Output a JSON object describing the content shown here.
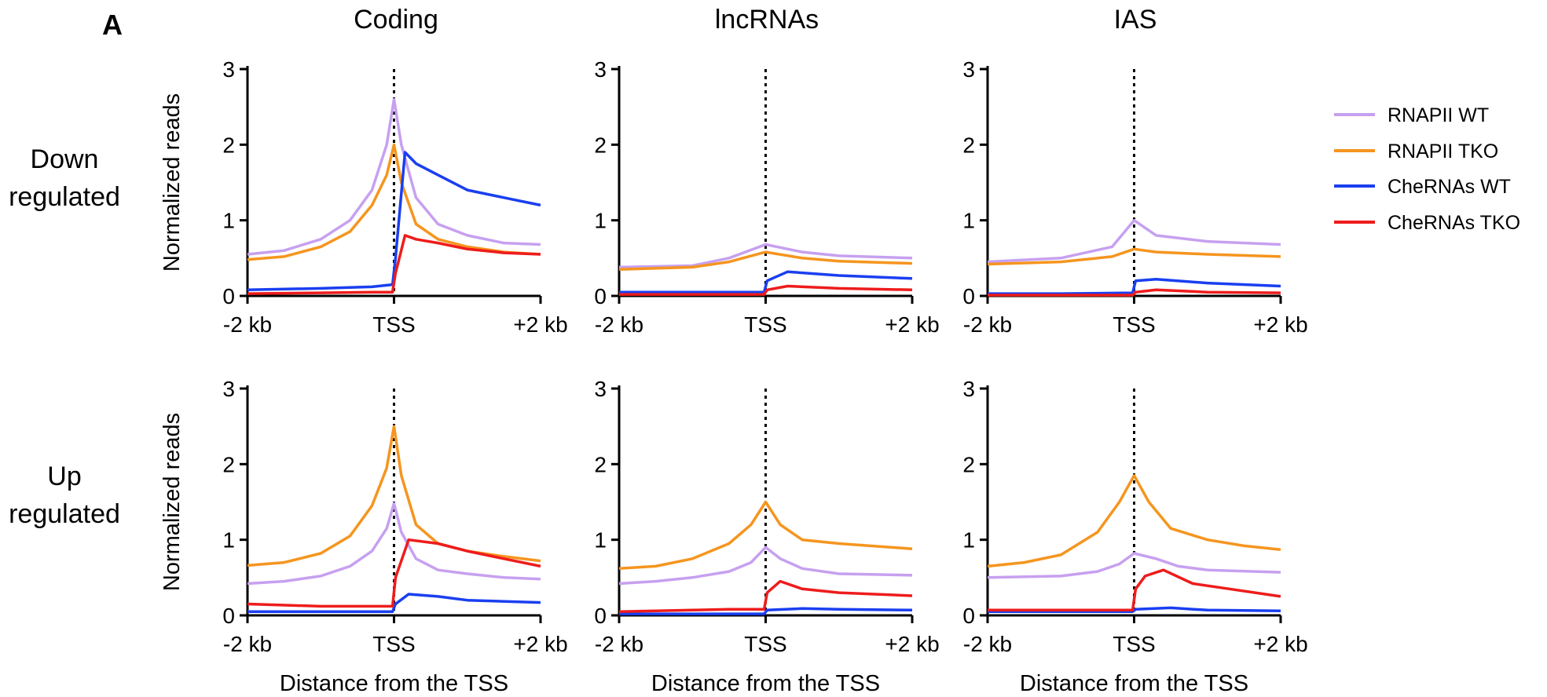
{
  "panel_letter": "A",
  "column_titles": [
    "Coding",
    "lncRNAs",
    "IAS"
  ],
  "row_labels": [
    {
      "line1": "Down",
      "line2": "regulated"
    },
    {
      "line1": "Up",
      "line2": "regulated"
    }
  ],
  "legend": [
    {
      "label": "RNAPII WT",
      "color": "#c7a0f0"
    },
    {
      "label": "RNAPII TKO",
      "color": "#f5951f"
    },
    {
      "label": "CheRNAs WT",
      "color": "#1a3ff0"
    },
    {
      "label": "CheRNAs TKO",
      "color": "#ee1c1c"
    }
  ],
  "chart_data": [
    {
      "type": "line",
      "row": 0,
      "col": 0,
      "title": "Coding",
      "row_label": "Down regulated",
      "ylabel": "Normalized reads",
      "xlabel": "",
      "ylim": [
        0,
        3
      ],
      "yticks": [
        0,
        1,
        2,
        3
      ],
      "xticks": [
        "-2 kb",
        "TSS",
        "+2 kb"
      ],
      "x_range_kb": [
        -2,
        2
      ],
      "tss_line": "dotted",
      "series": [
        {
          "name": "RNAPII WT",
          "x": [
            -2,
            -1.5,
            -1,
            -0.6,
            -0.3,
            -0.1,
            0,
            0.1,
            0.3,
            0.6,
            1,
            1.5,
            2
          ],
          "values": [
            0.55,
            0.6,
            0.75,
            1.0,
            1.4,
            2.0,
            2.6,
            2.0,
            1.3,
            0.95,
            0.8,
            0.7,
            0.68
          ]
        },
        {
          "name": "RNAPII TKO",
          "x": [
            -2,
            -1.5,
            -1,
            -0.6,
            -0.3,
            -0.1,
            0,
            0.1,
            0.3,
            0.6,
            1,
            1.5,
            2
          ],
          "values": [
            0.48,
            0.52,
            0.65,
            0.85,
            1.2,
            1.6,
            2.0,
            1.5,
            0.95,
            0.75,
            0.65,
            0.58,
            0.55
          ]
        },
        {
          "name": "CheRNAs WT",
          "x": [
            -2,
            -1,
            -0.3,
            -0.02,
            0.02,
            0.15,
            0.3,
            0.6,
            1,
            1.5,
            2
          ],
          "values": [
            0.08,
            0.1,
            0.12,
            0.15,
            0.5,
            1.9,
            1.75,
            1.6,
            1.4,
            1.3,
            1.2
          ]
        },
        {
          "name": "CheRNAs TKO",
          "x": [
            -2,
            -1,
            -0.3,
            -0.02,
            0.02,
            0.15,
            0.3,
            0.6,
            1,
            1.5,
            2
          ],
          "values": [
            0.03,
            0.04,
            0.05,
            0.05,
            0.3,
            0.8,
            0.75,
            0.7,
            0.62,
            0.57,
            0.55
          ]
        }
      ]
    },
    {
      "type": "line",
      "row": 0,
      "col": 1,
      "title": "lncRNAs",
      "row_label": "Down regulated",
      "ylabel": "",
      "xlabel": "",
      "ylim": [
        0,
        3
      ],
      "yticks": [
        0,
        1,
        2,
        3
      ],
      "xticks": [
        "-2 kb",
        "TSS",
        "+2 kb"
      ],
      "x_range_kb": [
        -2,
        2
      ],
      "tss_line": "dotted",
      "series": [
        {
          "name": "RNAPII WT",
          "x": [
            -2,
            -1,
            -0.5,
            0,
            0.5,
            1,
            2
          ],
          "values": [
            0.38,
            0.4,
            0.5,
            0.68,
            0.58,
            0.53,
            0.5
          ]
        },
        {
          "name": "RNAPII TKO",
          "x": [
            -2,
            -1,
            -0.5,
            0,
            0.5,
            1,
            2
          ],
          "values": [
            0.35,
            0.38,
            0.45,
            0.58,
            0.5,
            0.46,
            0.43
          ]
        },
        {
          "name": "CheRNAs WT",
          "x": [
            -2,
            -1,
            -0.02,
            0.02,
            0.3,
            1,
            2
          ],
          "values": [
            0.05,
            0.05,
            0.05,
            0.2,
            0.32,
            0.27,
            0.23
          ]
        },
        {
          "name": "CheRNAs TKO",
          "x": [
            -2,
            -1,
            -0.02,
            0.02,
            0.3,
            1,
            2
          ],
          "values": [
            0.02,
            0.02,
            0.02,
            0.08,
            0.13,
            0.1,
            0.08
          ]
        }
      ]
    },
    {
      "type": "line",
      "row": 0,
      "col": 2,
      "title": "IAS",
      "row_label": "Down regulated",
      "ylabel": "",
      "xlabel": "",
      "ylim": [
        0,
        3
      ],
      "yticks": [
        0,
        1,
        2,
        3
      ],
      "xticks": [
        "-2 kb",
        "TSS",
        "+2 kb"
      ],
      "x_range_kb": [
        -2,
        2
      ],
      "tss_line": "dotted",
      "series": [
        {
          "name": "RNAPII WT",
          "x": [
            -2,
            -1,
            -0.3,
            0,
            0.3,
            1,
            2
          ],
          "values": [
            0.45,
            0.5,
            0.65,
            1.0,
            0.8,
            0.72,
            0.68
          ]
        },
        {
          "name": "RNAPII TKO",
          "x": [
            -2,
            -1,
            -0.3,
            0,
            0.3,
            1,
            2
          ],
          "values": [
            0.42,
            0.45,
            0.52,
            0.62,
            0.58,
            0.55,
            0.52
          ]
        },
        {
          "name": "CheRNAs WT",
          "x": [
            -2,
            -1,
            -0.02,
            0.02,
            0.3,
            1,
            2
          ],
          "values": [
            0.03,
            0.03,
            0.04,
            0.2,
            0.22,
            0.17,
            0.13
          ]
        },
        {
          "name": "CheRNAs TKO",
          "x": [
            -2,
            -1,
            -0.02,
            0.02,
            0.3,
            1,
            2
          ],
          "values": [
            0.01,
            0.01,
            0.01,
            0.05,
            0.08,
            0.05,
            0.04
          ]
        }
      ]
    },
    {
      "type": "line",
      "row": 1,
      "col": 0,
      "title": "Coding",
      "row_label": "Up regulated",
      "ylabel": "Normalized reads",
      "xlabel": "Distance from the TSS",
      "ylim": [
        0,
        3
      ],
      "yticks": [
        0,
        1,
        2,
        3
      ],
      "xticks": [
        "-2 kb",
        "TSS",
        "+2 kb"
      ],
      "x_range_kb": [
        -2,
        2
      ],
      "tss_line": "dotted",
      "series": [
        {
          "name": "RNAPII WT",
          "x": [
            -2,
            -1.5,
            -1,
            -0.6,
            -0.3,
            -0.1,
            0,
            0.1,
            0.3,
            0.6,
            1,
            1.5,
            2
          ],
          "values": [
            0.42,
            0.45,
            0.52,
            0.65,
            0.85,
            1.15,
            1.48,
            1.1,
            0.75,
            0.6,
            0.55,
            0.5,
            0.48
          ]
        },
        {
          "name": "RNAPII TKO",
          "x": [
            -2,
            -1.5,
            -1,
            -0.6,
            -0.3,
            -0.1,
            0,
            0.1,
            0.3,
            0.6,
            1,
            1.5,
            2
          ],
          "values": [
            0.66,
            0.7,
            0.82,
            1.05,
            1.45,
            1.95,
            2.5,
            1.85,
            1.2,
            0.95,
            0.85,
            0.78,
            0.72
          ]
        },
        {
          "name": "CheRNAs WT",
          "x": [
            -2,
            -1,
            -0.02,
            0.02,
            0.2,
            0.6,
            1,
            2
          ],
          "values": [
            0.05,
            0.05,
            0.05,
            0.15,
            0.28,
            0.25,
            0.2,
            0.17
          ]
        },
        {
          "name": "CheRNAs TKO",
          "x": [
            -2,
            -1,
            -0.3,
            -0.02,
            0.02,
            0.2,
            0.6,
            1,
            1.5,
            2
          ],
          "values": [
            0.15,
            0.12,
            0.12,
            0.12,
            0.5,
            1.0,
            0.95,
            0.85,
            0.75,
            0.65
          ]
        }
      ]
    },
    {
      "type": "line",
      "row": 1,
      "col": 1,
      "title": "lncRNAs",
      "row_label": "Up regulated",
      "ylabel": "",
      "xlabel": "Distance from the TSS",
      "ylim": [
        0,
        3
      ],
      "yticks": [
        0,
        1,
        2,
        3
      ],
      "xticks": [
        "-2 kb",
        "TSS",
        "+2 kb"
      ],
      "x_range_kb": [
        -2,
        2
      ],
      "tss_line": "dotted",
      "series": [
        {
          "name": "RNAPII WT",
          "x": [
            -2,
            -1.5,
            -1,
            -0.5,
            -0.2,
            0,
            0.2,
            0.5,
            1,
            2
          ],
          "values": [
            0.42,
            0.45,
            0.5,
            0.58,
            0.7,
            0.9,
            0.75,
            0.62,
            0.55,
            0.53
          ]
        },
        {
          "name": "RNAPII TKO",
          "x": [
            -2,
            -1.5,
            -1,
            -0.5,
            -0.2,
            0,
            0.2,
            0.5,
            1,
            2
          ],
          "values": [
            0.62,
            0.65,
            0.75,
            0.95,
            1.2,
            1.5,
            1.2,
            1.0,
            0.95,
            0.88
          ]
        },
        {
          "name": "CheRNAs WT",
          "x": [
            -2,
            -1,
            -0.02,
            0.02,
            0.5,
            1,
            2
          ],
          "values": [
            0.02,
            0.02,
            0.02,
            0.07,
            0.09,
            0.08,
            0.07
          ]
        },
        {
          "name": "CheRNAs TKO",
          "x": [
            -2,
            -1,
            -0.5,
            -0.02,
            0.02,
            0.2,
            0.5,
            1,
            2
          ],
          "values": [
            0.05,
            0.07,
            0.08,
            0.08,
            0.3,
            0.45,
            0.35,
            0.3,
            0.26
          ]
        }
      ]
    },
    {
      "type": "line",
      "row": 1,
      "col": 2,
      "title": "IAS",
      "row_label": "Up regulated",
      "ylabel": "",
      "xlabel": "Distance from the TSS",
      "ylim": [
        0,
        3
      ],
      "yticks": [
        0,
        1,
        2,
        3
      ],
      "xticks": [
        "-2 kb",
        "TSS",
        "+2 kb"
      ],
      "x_range_kb": [
        -2,
        2
      ],
      "tss_line": "dotted",
      "series": [
        {
          "name": "RNAPII WT",
          "x": [
            -2,
            -1,
            -0.5,
            -0.2,
            0,
            0.3,
            0.6,
            1,
            2
          ],
          "values": [
            0.5,
            0.52,
            0.58,
            0.68,
            0.82,
            0.75,
            0.65,
            0.6,
            0.57
          ]
        },
        {
          "name": "RNAPII TKO",
          "x": [
            -2,
            -1.5,
            -1,
            -0.5,
            -0.2,
            0,
            0.2,
            0.5,
            1,
            1.5,
            2
          ],
          "values": [
            0.65,
            0.7,
            0.8,
            1.1,
            1.5,
            1.85,
            1.5,
            1.15,
            1.0,
            0.92,
            0.87
          ]
        },
        {
          "name": "CheRNAs WT",
          "x": [
            -2,
            -1,
            -0.02,
            0.02,
            0.5,
            1,
            2
          ],
          "values": [
            0.05,
            0.05,
            0.05,
            0.08,
            0.1,
            0.07,
            0.06
          ]
        },
        {
          "name": "CheRNAs TKO",
          "x": [
            -2,
            -1,
            -0.5,
            -0.02,
            0.02,
            0.15,
            0.4,
            0.8,
            1.3,
            2
          ],
          "values": [
            0.07,
            0.07,
            0.07,
            0.07,
            0.35,
            0.52,
            0.6,
            0.42,
            0.35,
            0.25
          ]
        }
      ]
    }
  ]
}
